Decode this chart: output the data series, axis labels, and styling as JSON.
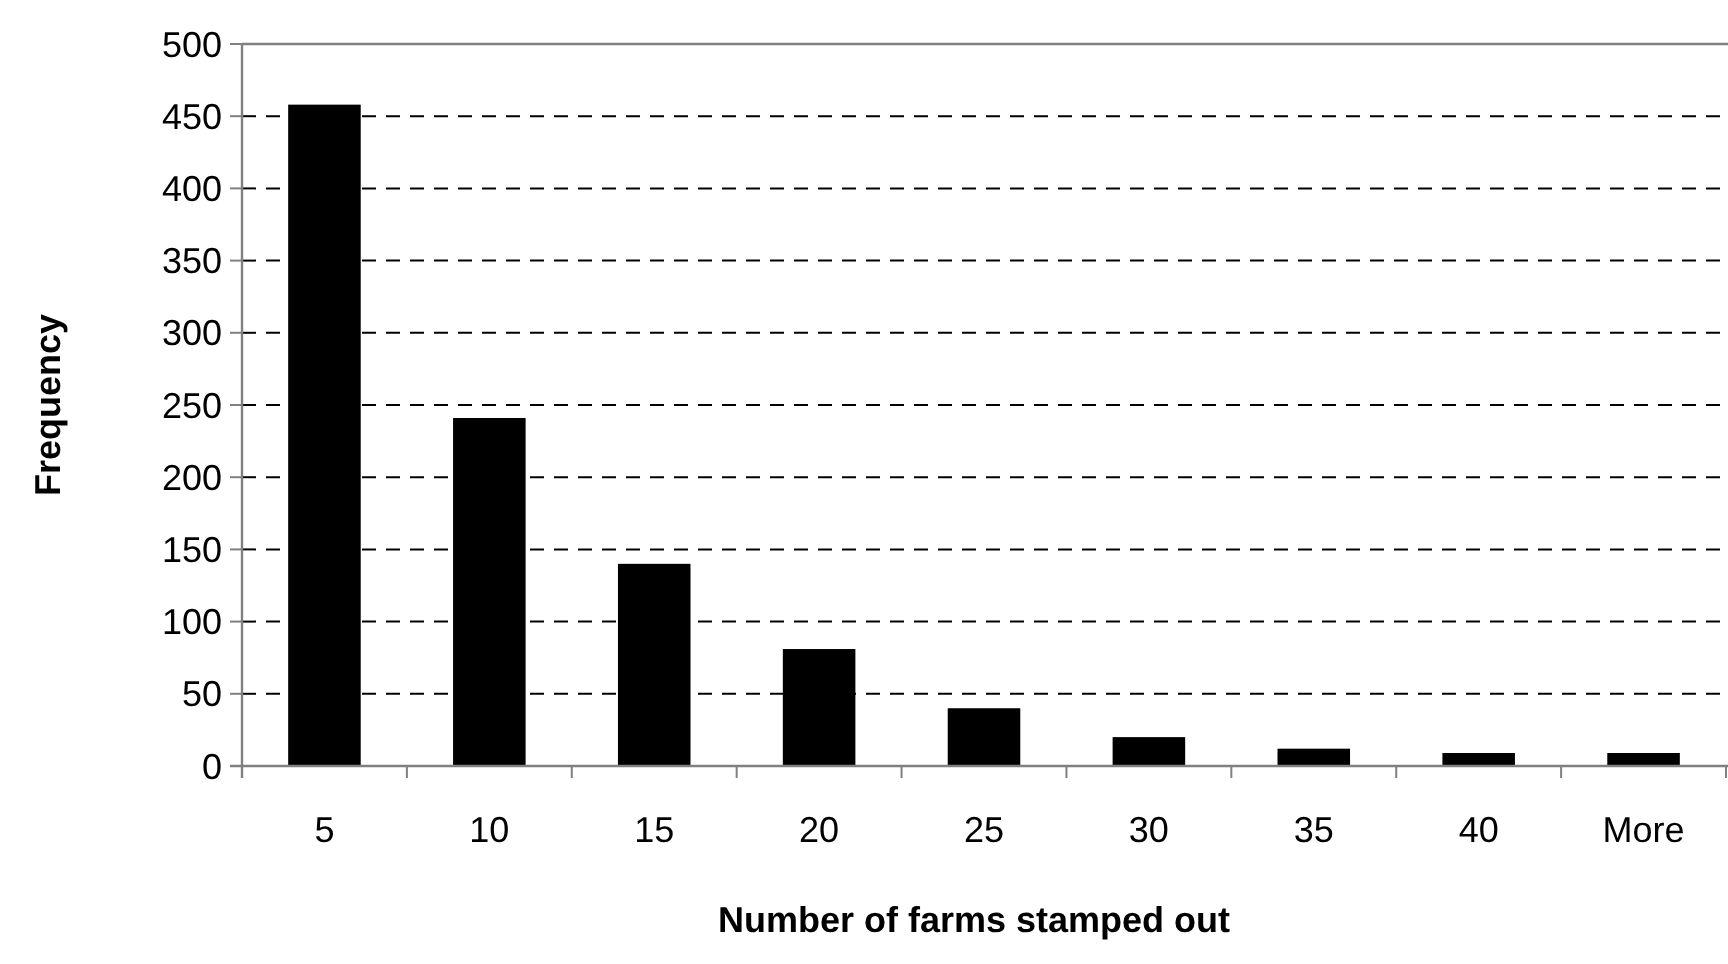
{
  "chart_data": {
    "type": "bar",
    "xlabel": "Number of farms stamped out",
    "ylabel": "Frequency",
    "categories": [
      "5",
      "10",
      "15",
      "20",
      "25",
      "30",
      "35",
      "40",
      "More"
    ],
    "values": [
      458,
      241,
      140,
      81,
      40,
      20,
      12,
      9,
      9
    ],
    "color": "#000000",
    "ylim": [
      0,
      500
    ],
    "yticks": [
      0,
      50,
      100,
      150,
      200,
      250,
      300,
      350,
      400,
      450,
      500
    ],
    "grid": "y"
  }
}
